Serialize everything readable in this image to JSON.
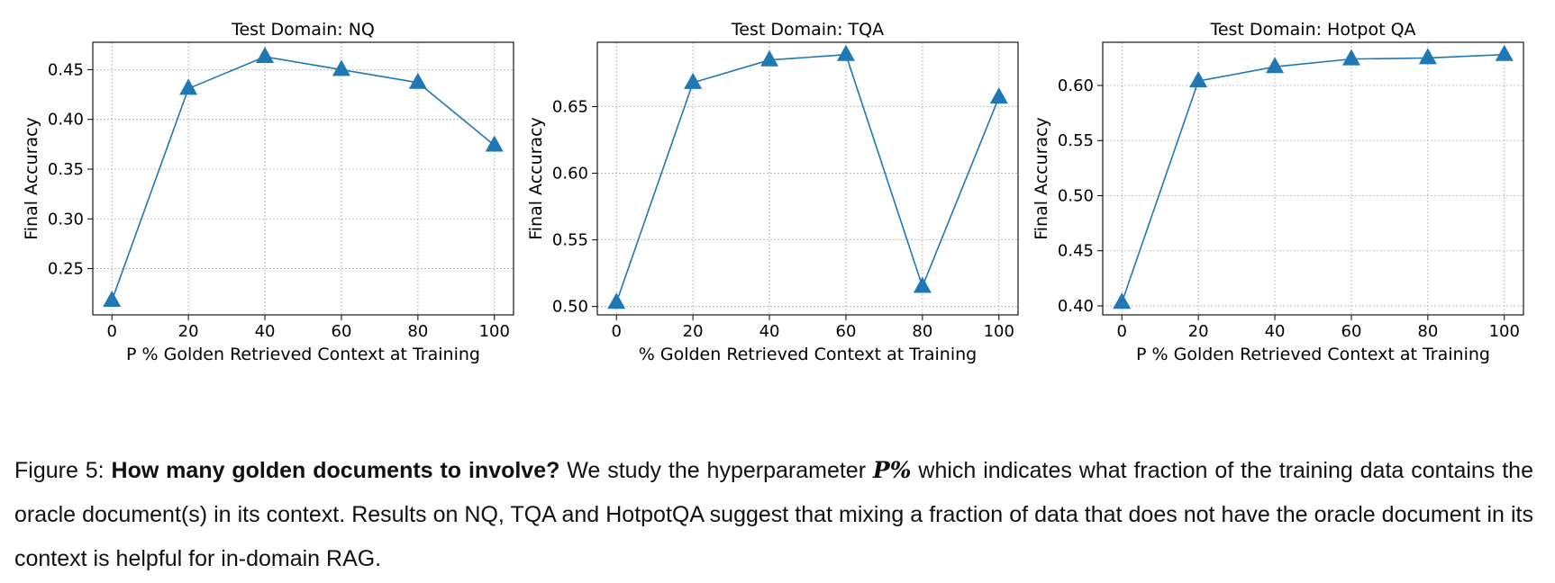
{
  "chart_data": [
    {
      "type": "line",
      "title": "Test Domain: NQ",
      "xlabel": "P % Golden Retrieved Context at Training",
      "ylabel": "Final Accuracy",
      "x": [
        0,
        20,
        40,
        60,
        80,
        100
      ],
      "series": [
        {
          "values": [
            0.218,
            0.431,
            0.463,
            0.45,
            0.437,
            0.374
          ]
        }
      ],
      "xticks": [
        0,
        20,
        40,
        60,
        80,
        100
      ],
      "yticks": [
        0.25,
        0.3,
        0.35,
        0.4,
        0.45
      ],
      "ytick_labels": [
        "0.25",
        "0.30",
        "0.35",
        "0.40",
        "0.45"
      ],
      "xlim": [
        -5,
        105
      ],
      "ylim": [
        0.2035,
        0.4775
      ],
      "marker": "triangle",
      "color": "#1f77b4",
      "grid": true
    },
    {
      "type": "line",
      "title": "Test Domain: TQA",
      "xlabel": "% Golden Retrieved Context at Training",
      "ylabel": "Final Accuracy",
      "x": [
        0,
        20,
        40,
        60,
        80,
        100
      ],
      "series": [
        {
          "values": [
            0.503,
            0.668,
            0.685,
            0.689,
            0.515,
            0.657
          ]
        }
      ],
      "xticks": [
        0,
        20,
        40,
        60,
        80,
        100
      ],
      "yticks": [
        0.5,
        0.55,
        0.6,
        0.65
      ],
      "ytick_labels": [
        "0.50",
        "0.55",
        "0.60",
        "0.65"
      ],
      "xlim": [
        -5,
        105
      ],
      "ylim": [
        0.4937,
        0.6983
      ],
      "marker": "triangle",
      "color": "#1f77b4",
      "grid": true
    },
    {
      "type": "line",
      "title": "Test Domain: Hotpot QA",
      "xlabel": "P % Golden Retrieved Context at Training",
      "ylabel": "Final Accuracy",
      "x": [
        0,
        20,
        40,
        60,
        80,
        100
      ],
      "series": [
        {
          "values": [
            0.403,
            0.604,
            0.617,
            0.624,
            0.625,
            0.628
          ]
        }
      ],
      "xticks": [
        0,
        20,
        40,
        60,
        80,
        100
      ],
      "yticks": [
        0.4,
        0.45,
        0.5,
        0.55,
        0.6
      ],
      "ytick_labels": [
        "0.40",
        "0.45",
        "0.50",
        "0.55",
        "0.60"
      ],
      "xlim": [
        -5,
        105
      ],
      "ylim": [
        0.3918,
        0.6392
      ],
      "marker": "triangle",
      "color": "#1f77b4",
      "grid": true
    }
  ],
  "caption": {
    "label": "Figure 5: ",
    "bold": "How many golden documents to involve?",
    "pre_math": " We study the hyperparameter ",
    "math": "P%",
    "post_math": " which indicates what fraction of the training data contains the oracle document(s) in its context. Results on NQ, TQA and HotpotQA suggest that mixing a fraction of data that does not have the oracle document in its context is helpful for in-domain RAG."
  }
}
